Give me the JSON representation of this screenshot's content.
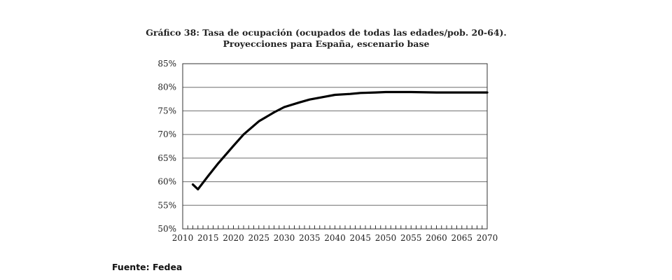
{
  "chart_data": {
    "type": "line",
    "title": "Gráfico 38: Tasa de ocupación (ocupados de todas las edades/pob. 20-64).",
    "subtitle": "Proyecciones para España, escenario base",
    "xlabel": "",
    "ylabel": "",
    "xlim": [
      2010,
      2070
    ],
    "ylim": [
      50,
      85
    ],
    "x_ticks": [
      "2010",
      "2015",
      "2020",
      "2025",
      "2030",
      "2035",
      "2040",
      "2045",
      "2050",
      "2055",
      "2060",
      "2065",
      "2070"
    ],
    "y_ticks": [
      {
        "value": 50,
        "label": "50%"
      },
      {
        "value": 55,
        "label": "55%"
      },
      {
        "value": 60,
        "label": "60%"
      },
      {
        "value": 65,
        "label": "65%"
      },
      {
        "value": 70,
        "label": "70%"
      },
      {
        "value": 75,
        "label": "75%"
      },
      {
        "value": 80,
        "label": "80%"
      },
      {
        "value": 85,
        "label": "85%"
      }
    ],
    "grid": "horizontal",
    "legend": "none",
    "series": [
      {
        "color": "#000000",
        "x": [
          2012,
          2013,
          2015,
          2017,
          2020,
          2022,
          2025,
          2028,
          2030,
          2033,
          2035,
          2038,
          2040,
          2043,
          2045,
          2048,
          2050,
          2055,
          2060,
          2065,
          2070
        ],
        "values": [
          59.4,
          58.4,
          61.2,
          63.9,
          67.6,
          70.0,
          72.8,
          74.7,
          75.8,
          76.8,
          77.4,
          78.0,
          78.4,
          78.6,
          78.8,
          78.9,
          79.0,
          79.0,
          78.9,
          78.9,
          78.9
        ]
      }
    ]
  },
  "source": "Fuente: Fedea"
}
